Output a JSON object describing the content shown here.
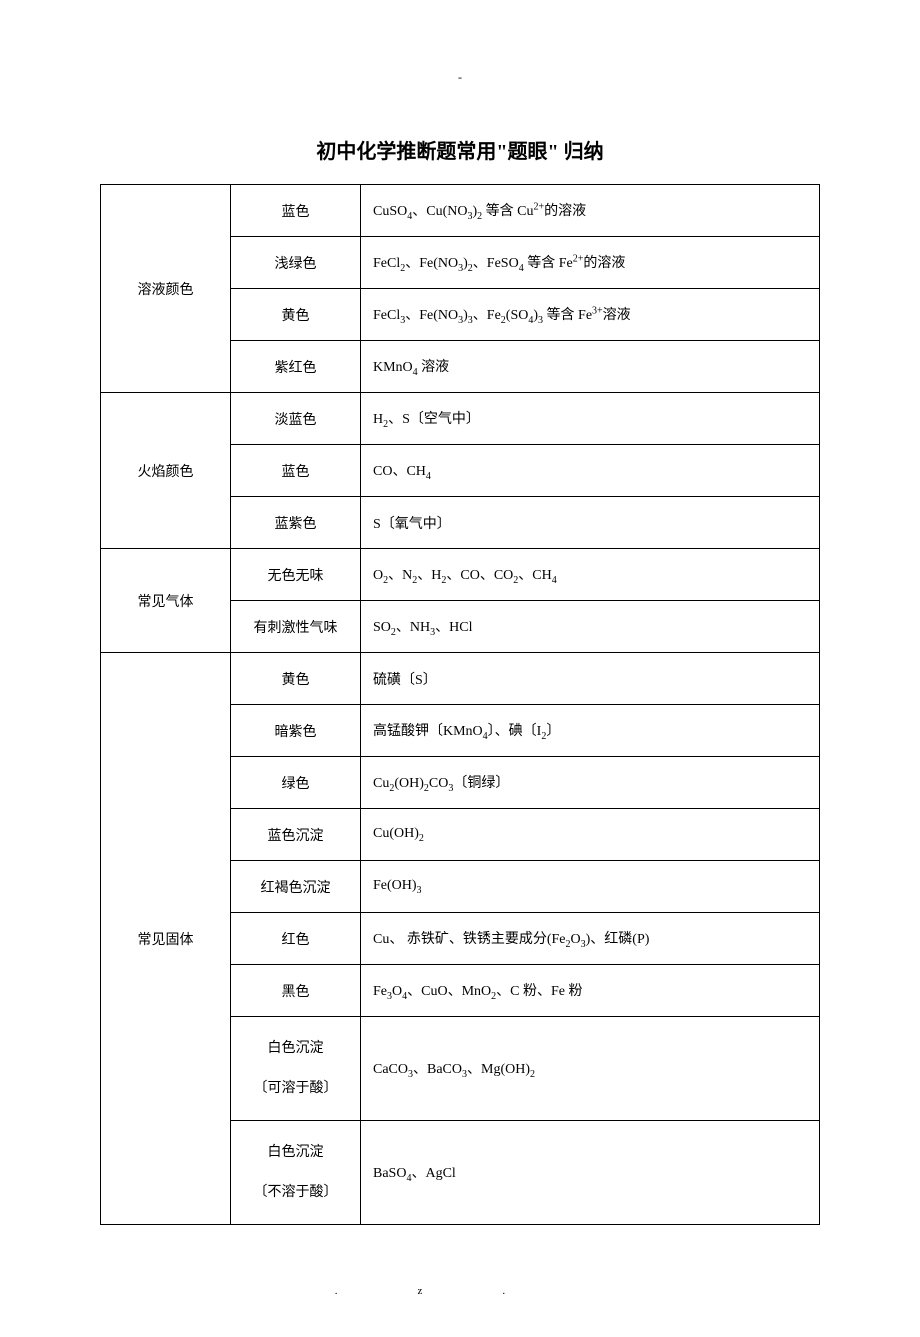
{
  "top_dash": "-",
  "title": "初中化学推断题常用\"题眼\" 归纳",
  "footer_left": ".",
  "footer_right": "z.",
  "categories": [
    {
      "name": "溶液颜色",
      "rows": [
        {
          "prop": "蓝色",
          "content": "CuSO<sub>4</sub>、Cu(NO<sub>3</sub>)<sub>2</sub> 等含 Cu<sup>2+</sup>的溶液"
        },
        {
          "prop": "浅绿色",
          "content": "FeCl<sub>2</sub>、Fe(NO<sub>3</sub>)<sub>2</sub>、FeSO<sub>4</sub> 等含 Fe<sup>2+</sup>的溶液"
        },
        {
          "prop": "黄色",
          "content": "FeCl<sub>3</sub>、Fe(NO<sub>3</sub>)<sub>3</sub>、Fe<sub>2</sub>(SO<sub>4</sub>)<sub>3</sub> 等含 Fe<sup>3+</sup>溶液"
        },
        {
          "prop": "紫红色",
          "content": "KMnO<sub>4</sub> 溶液"
        }
      ]
    },
    {
      "name": "火焰颜色",
      "rows": [
        {
          "prop": "淡蓝色",
          "content": "H<sub>2</sub>、S〔空气中〕"
        },
        {
          "prop": "蓝色",
          "content": "CO、CH<sub>4</sub>"
        },
        {
          "prop": "蓝紫色",
          "content": "S〔氧气中〕"
        }
      ]
    },
    {
      "name": "常见气体",
      "rows": [
        {
          "prop": "无色无味",
          "content": "O<sub>2</sub>、N<sub>2</sub>、H<sub>2</sub>、CO、CO<sub>2</sub>、CH<sub>4</sub>"
        },
        {
          "prop": "有刺激性气味",
          "content": "SO<sub>2</sub>、NH<sub>3</sub>、HCl"
        }
      ]
    },
    {
      "name": "常见固体",
      "rows": [
        {
          "prop": "黄色",
          "content": "硫磺〔S〕"
        },
        {
          "prop": "暗紫色",
          "content": "高锰酸钾〔KMnO<sub>4</sub>〕、碘〔I<sub>2</sub>〕"
        },
        {
          "prop": "绿色",
          "content": "Cu<sub>2</sub>(OH)<sub>2</sub>CO<sub>3</sub>〔铜绿〕"
        },
        {
          "prop": "蓝色沉淀",
          "content": "Cu(OH)<sub>2</sub>"
        },
        {
          "prop": "红褐色沉淀",
          "content": "Fe(OH)<sub>3</sub>"
        },
        {
          "prop": "红色",
          "content": "Cu、 赤铁矿、铁锈主要成分(Fe<sub>2</sub>O<sub>3</sub>)、红磷(P)"
        },
        {
          "prop": "黑色",
          "content": "Fe<sub>3</sub>O<sub>4</sub>、CuO、MnO<sub>2</sub>、C 粉、Fe 粉"
        },
        {
          "prop": "白色沉淀<br>〔可溶于酸〕",
          "content": "CaCO<sub>3</sub>、BaCO<sub>3</sub>、Mg(OH)<sub>2</sub>",
          "twoLine": true
        },
        {
          "prop": "白色沉淀<br>〔不溶于酸〕",
          "content": "BaSO<sub>4</sub>、AgCl",
          "twoLine": true
        }
      ]
    }
  ]
}
